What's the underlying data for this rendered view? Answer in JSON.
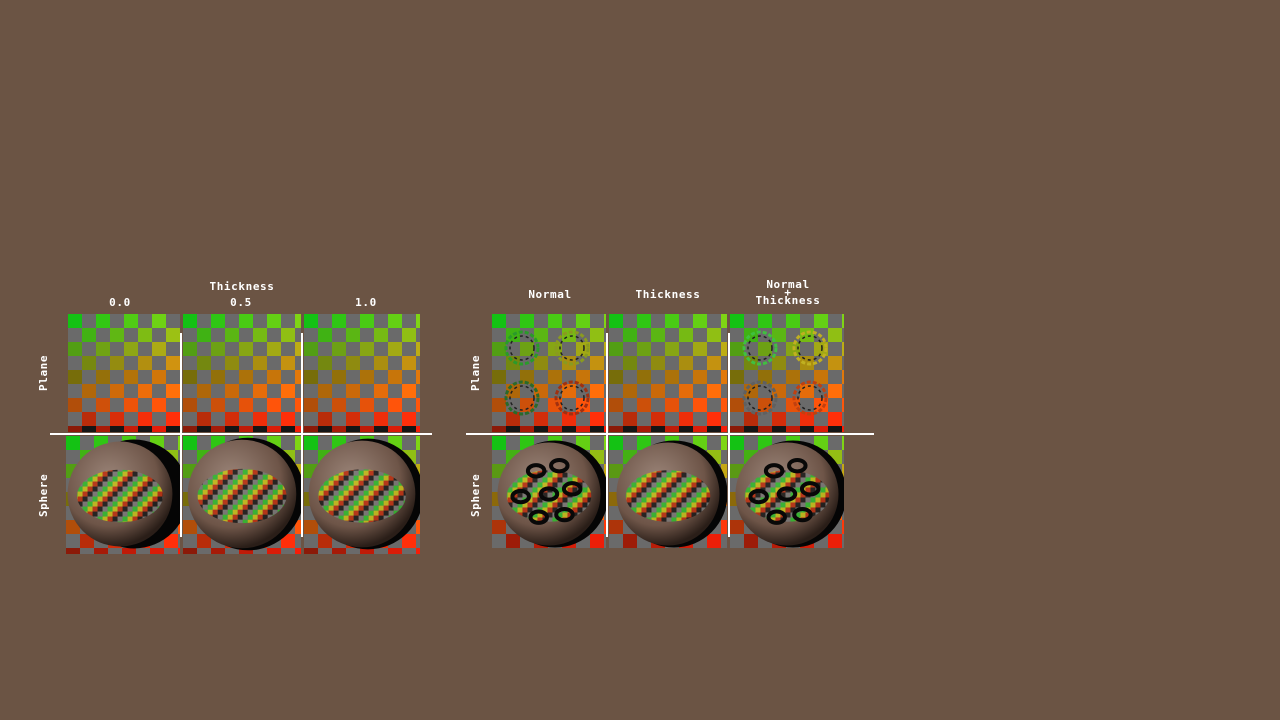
{
  "left_panel": {
    "title": "Thickness",
    "columns": [
      "0.0",
      "0.5",
      "1.0"
    ],
    "rows": [
      "Plane",
      "Sphere"
    ]
  },
  "right_panel": {
    "columns": [
      "Normal",
      "Thickness",
      "Normal\n+\nThickness"
    ],
    "rows": [
      "Plane",
      "Sphere"
    ]
  },
  "colors": {
    "background": "#6b5444",
    "divider": "#ffffff",
    "checker_gray": "#6a6a6a"
  }
}
